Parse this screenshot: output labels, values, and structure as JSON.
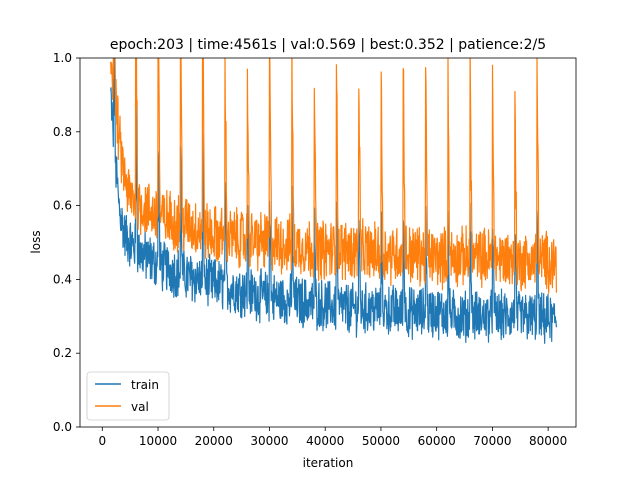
{
  "chart_data": {
    "type": "line",
    "title": "epoch:203 | time:4561s | val:0.569 | best:0.352 | patience:2/5",
    "xlabel": "iteration",
    "ylabel": "loss",
    "xlim": [
      -4000,
      85000
    ],
    "ylim": [
      0.0,
      1.0
    ],
    "x_ticks": [
      0,
      10000,
      20000,
      30000,
      40000,
      50000,
      60000,
      70000,
      80000
    ],
    "y_ticks": [
      0.0,
      0.2,
      0.4,
      0.6,
      0.8,
      1.0
    ],
    "x_tick_labels": [
      "0",
      "10000",
      "20000",
      "30000",
      "40000",
      "50000",
      "60000",
      "70000",
      "80000"
    ],
    "y_tick_labels": [
      "0.0",
      "0.2",
      "0.4",
      "0.6",
      "0.8",
      "1.0"
    ],
    "legend_position": "lower-left",
    "grid": false,
    "series": [
      {
        "name": "train",
        "color": "#1f77b4",
        "x": [
          1500,
          2000,
          3000,
          4000,
          5000,
          7000,
          10000,
          15000,
          20000,
          25000,
          30000,
          35000,
          40000,
          45000,
          50000,
          55000,
          60000,
          65000,
          70000,
          75000,
          80000,
          81500
        ],
        "y": [
          0.9,
          0.78,
          0.6,
          0.52,
          0.5,
          0.47,
          0.44,
          0.41,
          0.39,
          0.37,
          0.35,
          0.34,
          0.33,
          0.32,
          0.32,
          0.31,
          0.31,
          0.3,
          0.3,
          0.3,
          0.29,
          0.29
        ]
      },
      {
        "name": "val",
        "color": "#ff7f0e",
        "x": [
          1500,
          2000,
          3000,
          4000,
          5000,
          7000,
          10000,
          15000,
          20000,
          25000,
          30000,
          35000,
          40000,
          45000,
          50000,
          55000,
          60000,
          65000,
          70000,
          75000,
          80000,
          81500
        ],
        "y": [
          1.0,
          0.95,
          0.78,
          0.67,
          0.62,
          0.6,
          0.57,
          0.55,
          0.52,
          0.51,
          0.5,
          0.49,
          0.48,
          0.48,
          0.47,
          0.47,
          0.46,
          0.46,
          0.46,
          0.45,
          0.45,
          0.45
        ]
      }
    ],
    "noise_band": {
      "train": 0.06,
      "val": 0.07
    },
    "spike_period": 4000,
    "spike_start": 2000
  }
}
